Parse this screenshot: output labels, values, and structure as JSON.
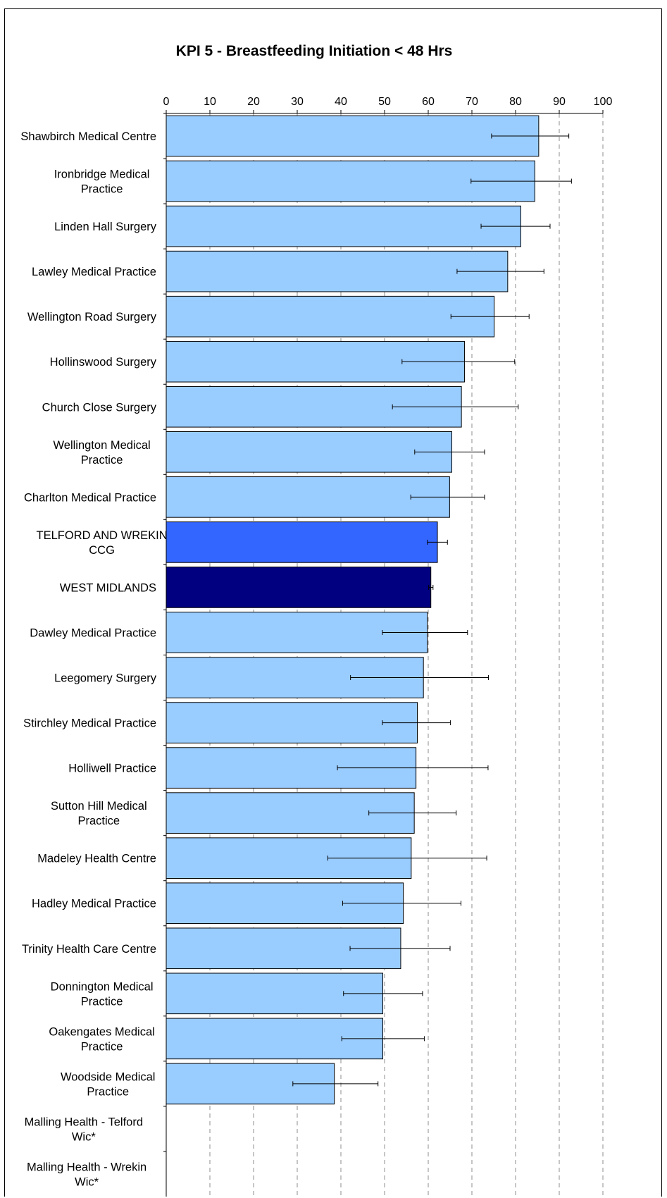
{
  "chart_data": {
    "type": "bar",
    "orientation": "horizontal",
    "title": "KPI 5 - Breastfeeding Initiation < 48 Hrs",
    "xlabel": "",
    "ylabel": "",
    "xlim": [
      0,
      100
    ],
    "xticks": [
      "0",
      "10",
      "20",
      "30",
      "40",
      "50",
      "60",
      "70",
      "80",
      "90",
      "100"
    ],
    "axis_position": "top",
    "grid": "vertical dashed",
    "colors": {
      "practice": "#99ccff",
      "ccg": "#3366ff",
      "region": "#000080",
      "error": "#000000"
    },
    "categories": [
      [
        "Shawbirch Medical Centre"
      ],
      [
        "Ironbridge Medical",
        "Practice"
      ],
      [
        "Linden Hall Surgery"
      ],
      [
        "Lawley Medical Practice"
      ],
      [
        "Wellington Road Surgery"
      ],
      [
        "Hollinswood Surgery"
      ],
      [
        "Church Close Surgery"
      ],
      [
        "Wellington Medical",
        "Practice"
      ],
      [
        "Charlton Medical Practice"
      ],
      [
        "TELFORD AND WREKIN",
        "CCG"
      ],
      [
        "WEST MIDLANDS"
      ],
      [
        "Dawley Medical Practice"
      ],
      [
        "Leegomery Surgery"
      ],
      [
        "Stirchley Medical Practice"
      ],
      [
        "Holliwell Practice"
      ],
      [
        "Sutton Hill Medical",
        "Practice"
      ],
      [
        "Madeley Health Centre"
      ],
      [
        "Hadley Medical Practice"
      ],
      [
        "Trinity Health Care Centre"
      ],
      [
        "Donnington Medical",
        "Practice"
      ],
      [
        "Oakengates Medical",
        "Practice"
      ],
      [
        "Woodside Medical",
        "Practice"
      ],
      [
        "Malling Health - Telford",
        "Wic*"
      ],
      [
        "Malling Health - Wrekin",
        "Wic*"
      ]
    ],
    "values": [
      85.3,
      84.4,
      81.2,
      78.2,
      75.1,
      68.3,
      67.6,
      65.4,
      64.9,
      62.1,
      60.6,
      59.8,
      58.9,
      57.5,
      57.2,
      56.8,
      56.1,
      54.3,
      53.7,
      49.6,
      49.6,
      38.5,
      null,
      null
    ],
    "lower": [
      74.5,
      69.8,
      72.1,
      66.6,
      65.2,
      54.0,
      51.8,
      56.9,
      56.0,
      59.8,
      60.1,
      49.5,
      42.2,
      49.5,
      39.2,
      46.4,
      37.0,
      40.4,
      42.1,
      40.6,
      40.2,
      29.0,
      null,
      null
    ],
    "upper": [
      92.2,
      92.8,
      87.9,
      86.5,
      83.1,
      79.8,
      80.6,
      72.9,
      72.9,
      64.4,
      61.1,
      69.0,
      73.8,
      65.1,
      73.7,
      66.4,
      73.4,
      67.5,
      65.0,
      58.7,
      59.1,
      48.5,
      null,
      null
    ],
    "kinds": [
      "practice",
      "practice",
      "practice",
      "practice",
      "practice",
      "practice",
      "practice",
      "practice",
      "practice",
      "ccg",
      "region",
      "practice",
      "practice",
      "practice",
      "practice",
      "practice",
      "practice",
      "practice",
      "practice",
      "practice",
      "practice",
      "practice",
      "practice",
      "practice"
    ]
  }
}
